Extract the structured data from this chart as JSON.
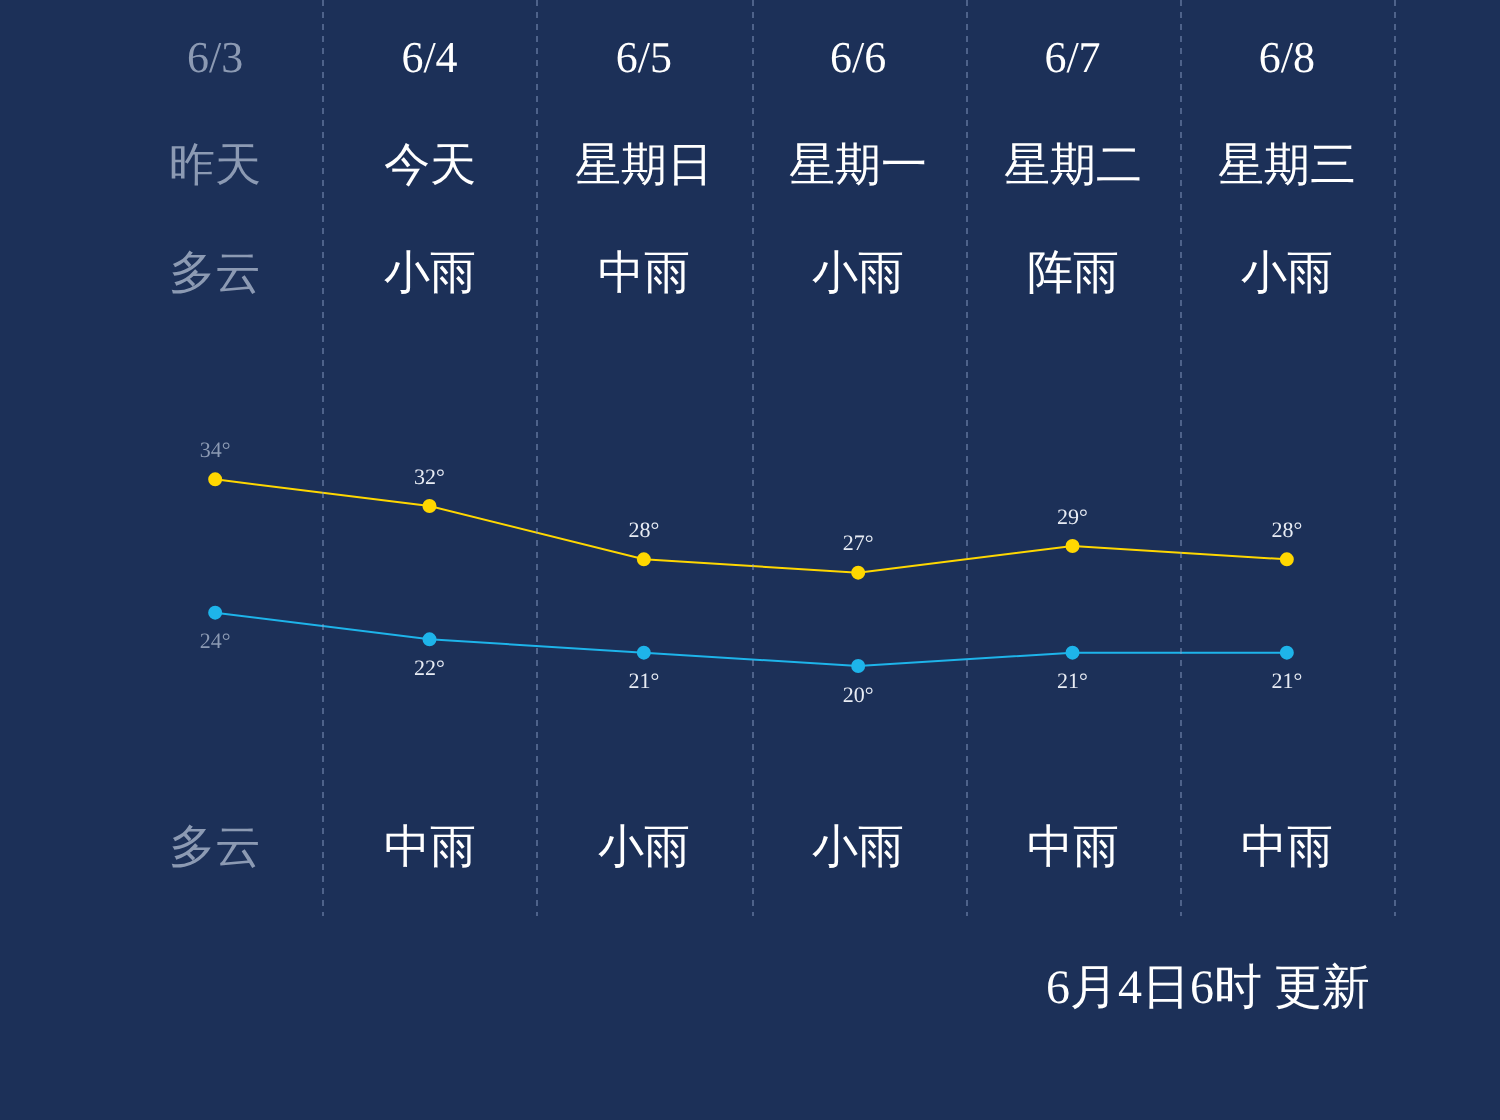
{
  "chart_data": {
    "type": "line",
    "categories": [
      "6/3",
      "6/4",
      "6/5",
      "6/6",
      "6/7",
      "6/8"
    ],
    "series": [
      {
        "color": "#ffd700",
        "values": [
          34,
          32,
          28,
          27,
          29,
          28
        ],
        "value_labels": [
          "34°",
          "32°",
          "28°",
          "27°",
          "29°",
          "28°"
        ]
      },
      {
        "color": "#1eb4ea",
        "values": [
          24,
          22,
          21,
          20,
          21,
          21
        ],
        "value_labels": [
          "24°",
          "22°",
          "21°",
          "20°",
          "21°",
          "21°"
        ]
      }
    ],
    "annotations": [
      "昨天",
      "多云",
      "多云",
      "今天",
      "小雨",
      "中雨",
      "星期日",
      "中雨",
      "小雨",
      "星期一",
      "小雨",
      "小雨",
      "星期二",
      "阵雨",
      "中雨",
      "星期三",
      "小雨",
      "中雨",
      "6月4日6时 更新"
    ],
    "grid": "x",
    "legend": false,
    "marker": "circle"
  }
}
